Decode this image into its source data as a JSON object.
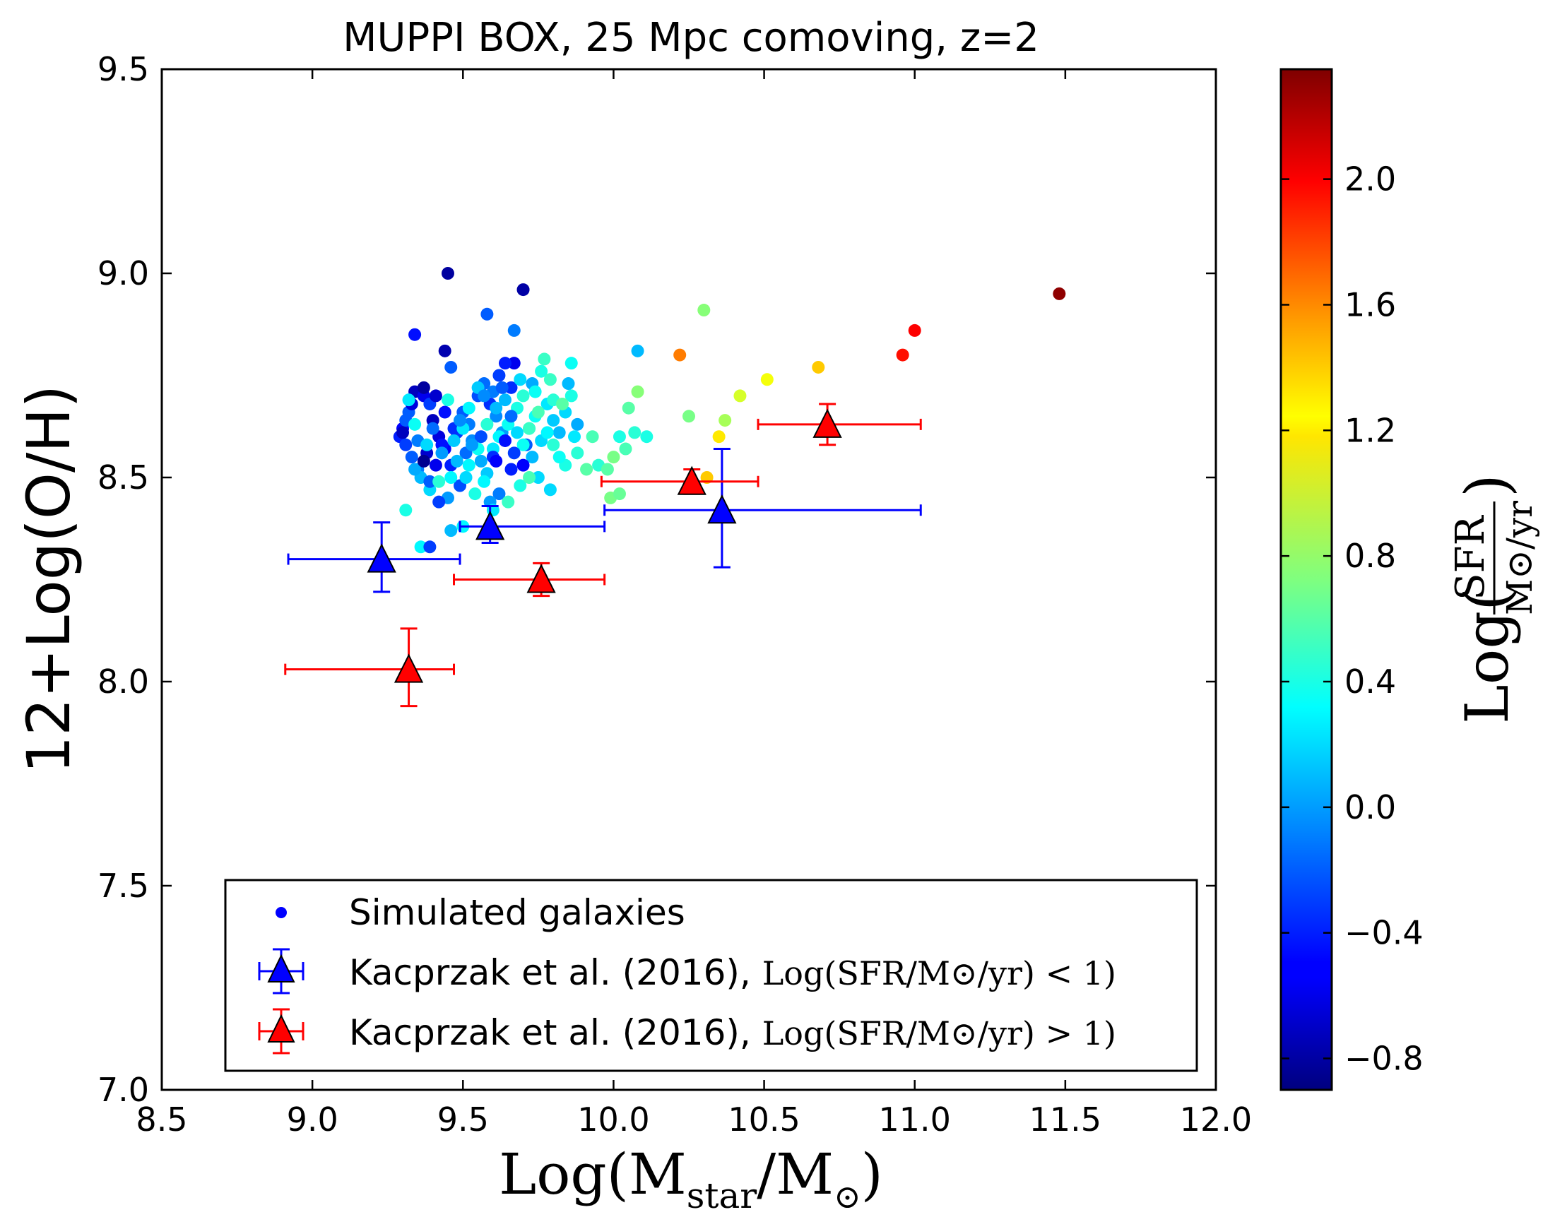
{
  "chart_data": {
    "type": "scatter",
    "title": "MUPPI BOX, 25 Mpc comoving, z=2",
    "xlabel": "Log(M_star/M_⊙)",
    "ylabel": "12+Log(O/H)",
    "colorbar_label": "Log(SFR / M_⊙/yr)",
    "xlim": [
      8.5,
      12.0
    ],
    "ylim": [
      7.0,
      9.5
    ],
    "clim": [
      -0.9,
      2.35
    ],
    "xticks": [
      "8.5",
      "9.0",
      "9.5",
      "10.0",
      "10.5",
      "11.0",
      "11.5",
      "12.0"
    ],
    "yticks": [
      "7.0",
      "7.5",
      "8.0",
      "8.5",
      "9.0",
      "9.5"
    ],
    "cticks": [
      "−0.8",
      "−0.4",
      "0.0",
      "0.4",
      "0.8",
      "1.2",
      "1.6",
      "2.0"
    ],
    "legend": {
      "position": "lower-center",
      "entries": [
        {
          "label": "Simulated galaxies",
          "suffix": ""
        },
        {
          "label": "Kacprzak et al. (2016), ",
          "suffix": "Log(SFR/M⊙/yr) < 1)"
        },
        {
          "label": "Kacprzak et al. (2016), ",
          "suffix": "Log(SFR/M⊙/yr) > 1)"
        }
      ]
    },
    "series": [
      {
        "name": "Kacprzak et al. (2016), Log(SFR/M⊙/yr) < 1",
        "color": "#0000ff",
        "marker": "triangle",
        "points": [
          {
            "x": 9.23,
            "y": 8.3,
            "xlo": 8.92,
            "xhi": 9.49,
            "ylo": 8.22,
            "yhi": 8.39
          },
          {
            "x": 9.59,
            "y": 8.38,
            "xlo": 9.49,
            "xhi": 9.97,
            "ylo": 8.34,
            "yhi": 8.43
          },
          {
            "x": 10.36,
            "y": 8.42,
            "xlo": 9.97,
            "xhi": 11.02,
            "ylo": 8.28,
            "yhi": 8.57
          }
        ]
      },
      {
        "name": "Kacprzak et al. (2016), Log(SFR/M⊙/yr) > 1",
        "color": "#ff0000",
        "marker": "triangle",
        "points": [
          {
            "x": 9.32,
            "y": 8.03,
            "xlo": 8.91,
            "xhi": 9.47,
            "ylo": 7.94,
            "yhi": 8.13
          },
          {
            "x": 9.76,
            "y": 8.25,
            "xlo": 9.47,
            "xhi": 9.97,
            "ylo": 8.21,
            "yhi": 8.29
          },
          {
            "x": 10.26,
            "y": 8.49,
            "xlo": 9.96,
            "xhi": 10.48,
            "ylo": 8.46,
            "yhi": 8.52
          },
          {
            "x": 10.71,
            "y": 8.63,
            "xlo": 10.48,
            "xhi": 11.02,
            "ylo": 8.58,
            "yhi": 8.68
          }
        ]
      },
      {
        "name": "Simulated galaxies",
        "marker": "circle",
        "points": [
          [
            9.45,
            9.0,
            -0.8
          ],
          [
            9.7,
            8.96,
            -0.78
          ],
          [
            9.44,
            8.81,
            -0.75
          ],
          [
            9.34,
            8.85,
            -0.45
          ],
          [
            9.58,
            8.9,
            -0.2
          ],
          [
            9.67,
            8.86,
            -0.1
          ],
          [
            9.67,
            8.78,
            -0.55
          ],
          [
            9.64,
            8.78,
            -0.4
          ],
          [
            9.46,
            8.77,
            -0.2
          ],
          [
            9.34,
            8.71,
            -0.7
          ],
          [
            9.37,
            8.7,
            -0.55
          ],
          [
            9.39,
            8.68,
            -0.3
          ],
          [
            9.32,
            8.66,
            -0.2
          ],
          [
            9.3,
            8.62,
            -0.5
          ],
          [
            9.29,
            8.6,
            -0.4
          ],
          [
            9.31,
            8.58,
            -0.3
          ],
          [
            9.33,
            8.55,
            -0.2
          ],
          [
            9.35,
            8.52,
            -0.1
          ],
          [
            9.4,
            8.64,
            -0.7
          ],
          [
            9.42,
            8.6,
            -0.6
          ],
          [
            9.44,
            8.57,
            -0.5
          ],
          [
            9.46,
            8.53,
            -0.4
          ],
          [
            9.48,
            8.61,
            -0.3
          ],
          [
            9.5,
            8.66,
            -0.2
          ],
          [
            9.52,
            8.63,
            -0.1
          ],
          [
            9.55,
            8.7,
            -0.25
          ],
          [
            9.57,
            8.73,
            -0.15
          ],
          [
            9.59,
            8.68,
            -0.35
          ],
          [
            9.61,
            8.65,
            -0.05
          ],
          [
            9.63,
            8.61,
            0.0
          ],
          [
            9.36,
            8.5,
            0.1
          ],
          [
            9.39,
            8.47,
            0.2
          ],
          [
            9.38,
            8.56,
            -0.65
          ],
          [
            9.41,
            8.53,
            -0.55
          ],
          [
            9.43,
            8.58,
            -0.45
          ],
          [
            9.47,
            8.62,
            -0.35
          ],
          [
            9.49,
            8.48,
            -0.25
          ],
          [
            9.51,
            8.56,
            -0.15
          ],
          [
            9.53,
            8.59,
            -0.05
          ],
          [
            9.56,
            8.54,
            0.05
          ],
          [
            9.58,
            8.51,
            0.15
          ],
          [
            9.6,
            8.57,
            0.25
          ],
          [
            9.62,
            8.6,
            0.3
          ],
          [
            9.65,
            8.63,
            0.35
          ],
          [
            9.68,
            8.67,
            0.4
          ],
          [
            9.7,
            8.7,
            0.45
          ],
          [
            9.72,
            8.62,
            0.3
          ],
          [
            9.74,
            8.65,
            0.35
          ],
          [
            9.76,
            8.59,
            0.2
          ],
          [
            9.78,
            8.68,
            0.25
          ],
          [
            9.8,
            8.64,
            0.15
          ],
          [
            9.82,
            8.61,
            0.1
          ],
          [
            9.84,
            8.66,
            0.2
          ],
          [
            9.86,
            8.7,
            0.4
          ],
          [
            9.88,
            8.63,
            0.05
          ],
          [
            9.73,
            8.73,
            0.05
          ],
          [
            9.77,
            8.79,
            0.5
          ],
          [
            9.86,
            8.78,
            0.35
          ],
          [
            9.76,
            8.76,
            0.4
          ],
          [
            9.8,
            8.69,
            0.45
          ],
          [
            9.66,
            8.72,
            -0.35
          ],
          [
            9.62,
            8.75,
            -0.3
          ],
          [
            9.6,
            8.71,
            -0.1
          ],
          [
            9.64,
            8.69,
            0.1
          ],
          [
            9.69,
            8.74,
            0.2
          ],
          [
            9.71,
            8.58,
            -0.2
          ],
          [
            9.73,
            8.55,
            0.1
          ],
          [
            9.75,
            8.5,
            0.2
          ],
          [
            9.7,
            8.53,
            -0.5
          ],
          [
            9.66,
            8.52,
            -0.4
          ],
          [
            9.62,
            8.46,
            -0.1
          ],
          [
            9.59,
            8.44,
            0.0
          ],
          [
            9.57,
            8.49,
            0.3
          ],
          [
            9.54,
            8.46,
            0.4
          ],
          [
            9.51,
            8.5,
            0.2
          ],
          [
            9.45,
            8.45,
            0.0
          ],
          [
            9.42,
            8.44,
            -0.3
          ],
          [
            9.39,
            8.49,
            -0.2
          ],
          [
            9.34,
            8.52,
            0.05
          ],
          [
            9.31,
            8.42,
            0.4
          ],
          [
            9.36,
            8.33,
            0.3
          ],
          [
            9.39,
            8.33,
            -0.3
          ],
          [
            9.46,
            8.37,
            0.1
          ],
          [
            9.5,
            8.38,
            0.3
          ],
          [
            9.6,
            8.42,
            0.25
          ],
          [
            9.65,
            8.44,
            0.5
          ],
          [
            9.69,
            8.48,
            0.4
          ],
          [
            9.72,
            8.5,
            0.55
          ],
          [
            9.79,
            8.47,
            0.2
          ],
          [
            9.84,
            8.53,
            0.4
          ],
          [
            9.88,
            8.56,
            0.45
          ],
          [
            9.91,
            8.52,
            0.6
          ],
          [
            9.93,
            8.6,
            0.55
          ],
          [
            9.95,
            8.53,
            0.45
          ],
          [
            9.98,
            8.52,
            0.6
          ],
          [
            10.0,
            8.55,
            0.7
          ],
          [
            10.02,
            8.6,
            0.4
          ],
          [
            10.04,
            8.57,
            0.55
          ],
          [
            10.07,
            8.61,
            0.45
          ],
          [
            10.11,
            8.6,
            0.4
          ],
          [
            10.05,
            8.67,
            0.6
          ],
          [
            10.08,
            8.71,
            0.75
          ],
          [
            10.08,
            8.81,
            0.1
          ],
          [
            10.3,
            8.91,
            0.75
          ],
          [
            10.25,
            8.65,
            0.7
          ],
          [
            10.37,
            8.64,
            0.85
          ],
          [
            10.42,
            8.7,
            1.0
          ],
          [
            10.51,
            8.74,
            1.1
          ],
          [
            10.68,
            8.77,
            1.3
          ],
          [
            10.35,
            8.6,
            1.2
          ],
          [
            10.31,
            8.5,
            1.3
          ],
          [
            9.99,
            8.45,
            0.7
          ],
          [
            10.02,
            8.46,
            0.65
          ],
          [
            10.22,
            8.8,
            1.55
          ],
          [
            10.96,
            8.8,
            1.9
          ],
          [
            11.0,
            8.86,
            1.95
          ],
          [
            11.48,
            8.95,
            2.3
          ],
          [
            9.55,
            8.57,
            0.35
          ],
          [
            9.52,
            8.53,
            0.3
          ],
          [
            9.48,
            8.54,
            0.1
          ],
          [
            9.44,
            8.66,
            -0.45
          ],
          [
            9.41,
            8.7,
            -0.65
          ],
          [
            9.37,
            8.72,
            -0.8
          ],
          [
            9.33,
            8.68,
            -0.6
          ],
          [
            9.3,
            8.61,
            -0.7
          ],
          [
            9.31,
            8.64,
            -0.2
          ],
          [
            9.35,
            8.59,
            -0.1
          ],
          [
            9.37,
            8.54,
            -0.85
          ],
          [
            9.4,
            8.62,
            -0.15
          ],
          [
            9.43,
            8.56,
            0.0
          ],
          [
            9.47,
            8.59,
            0.15
          ],
          [
            9.5,
            8.62,
            0.25
          ],
          [
            9.52,
            8.67,
            0.3
          ],
          [
            9.55,
            8.72,
            0.15
          ],
          [
            9.57,
            8.7,
            -0.05
          ],
          [
            9.61,
            8.67,
            0.1
          ],
          [
            9.63,
            8.72,
            -0.2
          ],
          [
            9.66,
            8.65,
            -0.15
          ],
          [
            9.68,
            8.61,
            0.2
          ],
          [
            9.7,
            8.58,
            0.35
          ],
          [
            9.72,
            8.62,
            0.5
          ],
          [
            9.75,
            8.66,
            0.55
          ],
          [
            9.78,
            8.61,
            0.3
          ],
          [
            9.8,
            8.58,
            0.45
          ],
          [
            9.83,
            8.68,
            0.6
          ],
          [
            9.85,
            8.73,
            0.1
          ],
          [
            9.64,
            8.59,
            -0.45
          ],
          [
            9.6,
            8.55,
            -0.35
          ],
          [
            9.56,
            8.6,
            -0.25
          ],
          [
            9.53,
            8.58,
            0.0
          ],
          [
            9.49,
            8.64,
            -0.05
          ],
          [
            9.46,
            8.5,
            0.3
          ],
          [
            9.42,
            8.49,
            0.45
          ],
          [
            9.38,
            8.58,
            0.2
          ],
          [
            9.34,
            8.63,
            0.35
          ],
          [
            9.32,
            8.69,
            0.25
          ],
          [
            9.45,
            8.69,
            0.4
          ],
          [
            9.58,
            8.63,
            0.45
          ],
          [
            9.61,
            8.54,
            -0.5
          ],
          [
            9.67,
            8.56,
            -0.3
          ],
          [
            9.74,
            8.71,
            0.35
          ],
          [
            9.79,
            8.74,
            0.5
          ],
          [
            9.82,
            8.55,
            0.35
          ],
          [
            9.87,
            8.6,
            0.25
          ]
        ]
      }
    ]
  }
}
